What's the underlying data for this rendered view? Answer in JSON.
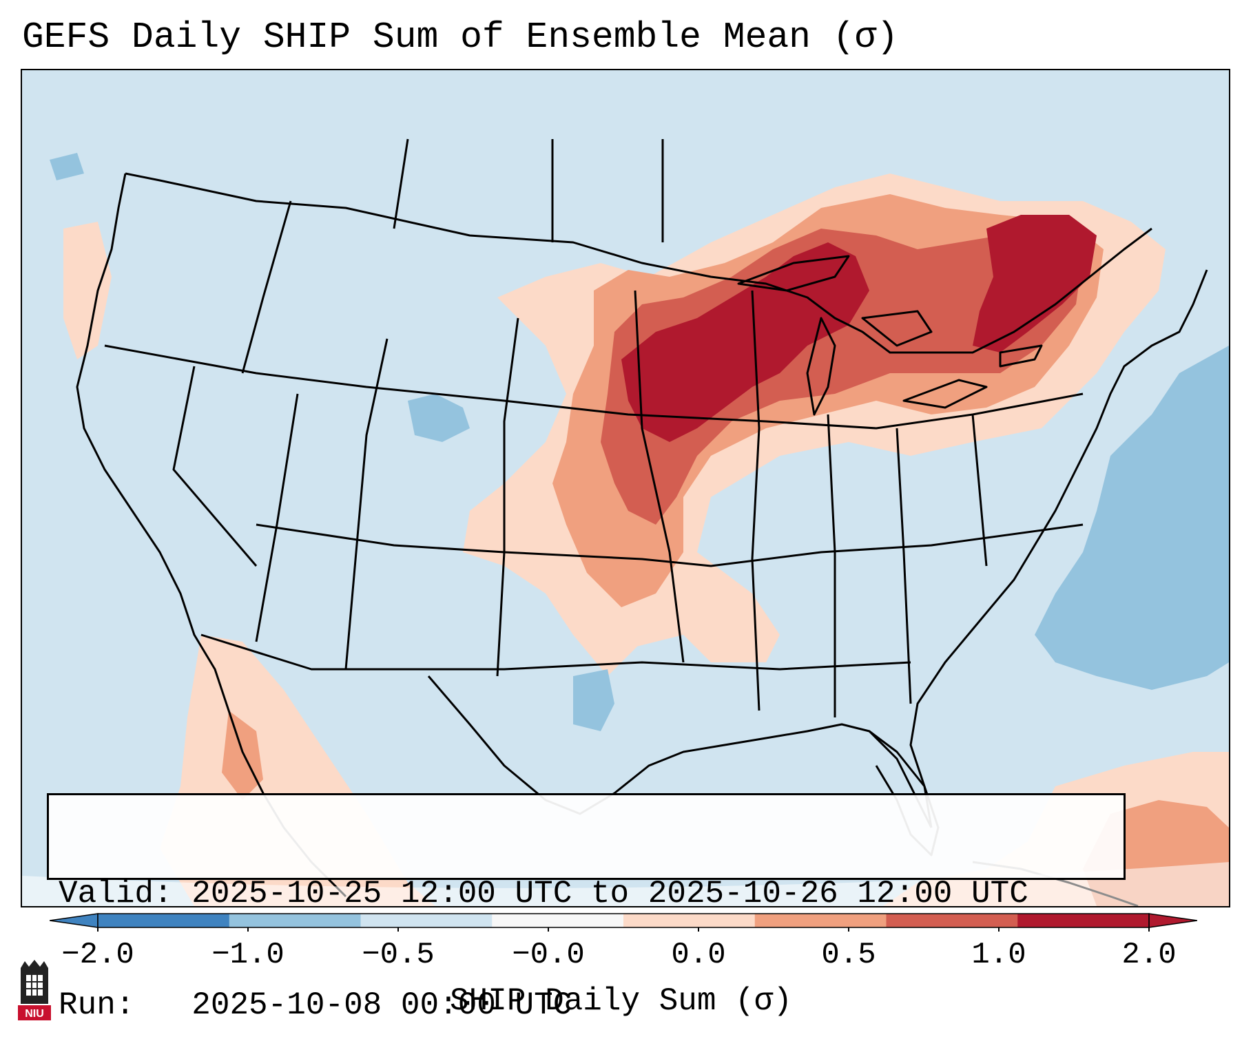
{
  "title": "GEFS Daily SHIP Sum of Ensemble Mean (σ)",
  "info": {
    "valid_line": "Valid: 2025-10-25 12:00 UTC to 2025-10-26 12:00 UTC",
    "run_line": "Run:   2025-10-08 00:00 UTC"
  },
  "colorbar": {
    "label": "SHIP Daily Sum (σ)",
    "ticks": [
      "−2.0",
      "−1.0",
      "−0.5",
      "−0.0",
      "0.0",
      "0.5",
      "1.0",
      "2.0"
    ],
    "colors": [
      "#3f83c0",
      "#94c3de",
      "#d0e4f0",
      "#f7f7f7",
      "#fcdac8",
      "#f0a07f",
      "#d35e51",
      "#b0192e"
    ],
    "extend": "both"
  },
  "anomaly_colors": {
    "strong_negative": "#94c3de",
    "background": "#d0e4f0",
    "weak_positive": "#fcdac8",
    "moderate_positive": "#f0a07f",
    "high_positive": "#d35e51",
    "extreme_positive": "#b0192e"
  },
  "logo": {
    "name": "niu-logo",
    "text": "NIU"
  }
}
